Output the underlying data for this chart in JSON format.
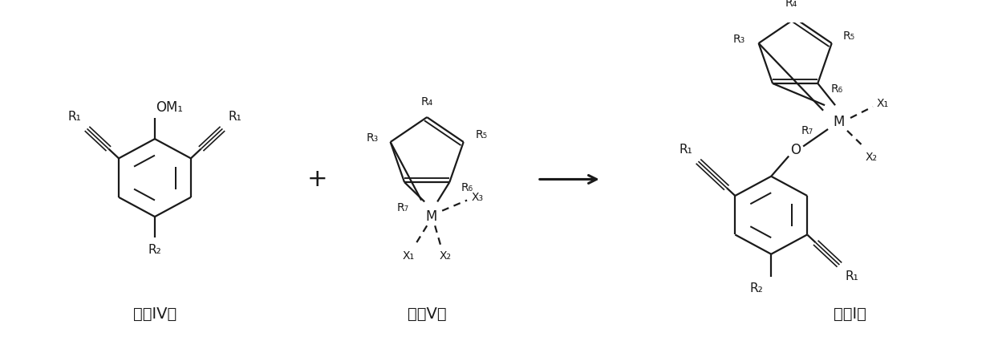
{
  "bg_color": "#ffffff",
  "line_color": "#1a1a1a",
  "line_width": 1.6,
  "fig_width": 12.39,
  "fig_height": 4.3,
  "dpi": 100,
  "formula_IV_label": "式（IV）",
  "formula_V_label": "式（V）",
  "formula_I_label": "式（I）"
}
